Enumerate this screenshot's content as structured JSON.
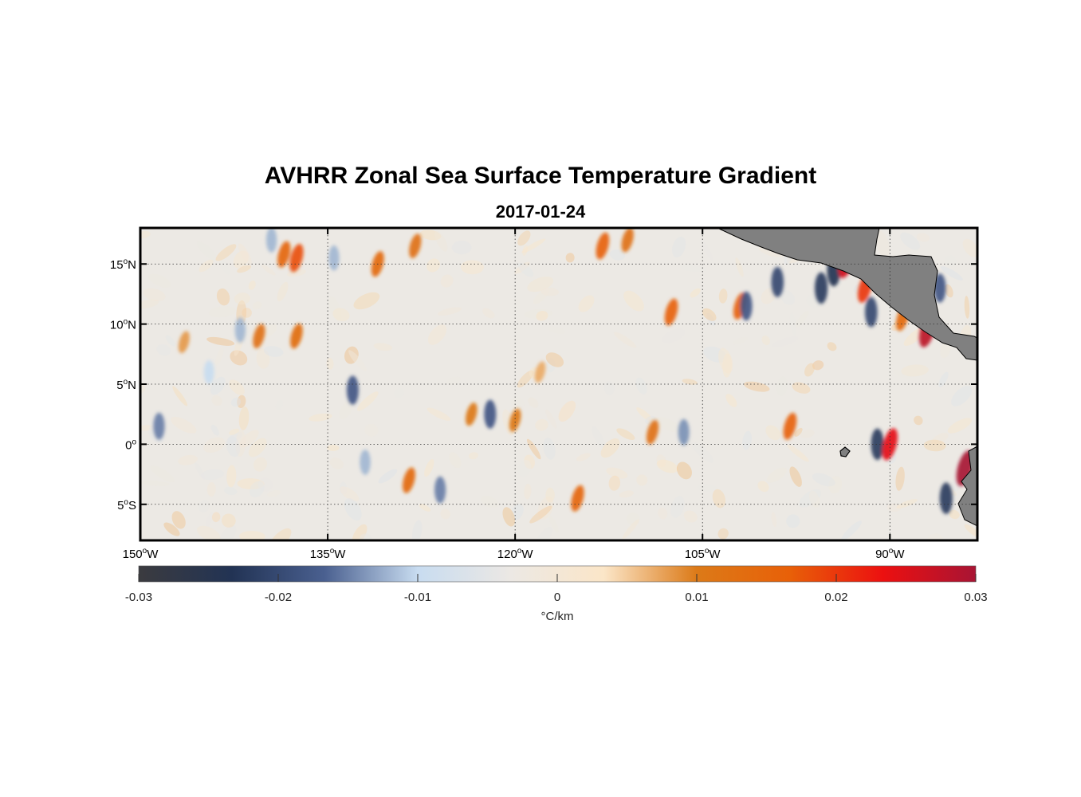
{
  "chart_data": {
    "type": "heatmap",
    "title": "AVHRR Zonal Sea Surface Temperature Gradient",
    "subtitle": "2017-01-24",
    "x_range": [
      -150,
      -83
    ],
    "y_range": [
      -8,
      18
    ],
    "x_ticks": [
      {
        "value": -150,
        "deg": "150",
        "dir": "W"
      },
      {
        "value": -135,
        "deg": "135",
        "dir": "W"
      },
      {
        "value": -120,
        "deg": "120",
        "dir": "W"
      },
      {
        "value": -105,
        "deg": "105",
        "dir": "W"
      },
      {
        "value": -90,
        "deg": "90",
        "dir": "W"
      }
    ],
    "y_ticks": [
      {
        "value": 15,
        "deg": "15",
        "dir": "N"
      },
      {
        "value": 10,
        "deg": "10",
        "dir": "N"
      },
      {
        "value": 5,
        "deg": "5",
        "dir": "N"
      },
      {
        "value": 0,
        "deg": "0",
        "dir": ""
      },
      {
        "value": -5,
        "deg": "5",
        "dir": "S"
      }
    ],
    "grid": true,
    "colorbar": {
      "label": "°C/km",
      "range": [
        -0.03,
        0.03
      ],
      "ticks": [
        {
          "value": -0.03,
          "label": "-0.03"
        },
        {
          "value": -0.02,
          "label": "-0.02"
        },
        {
          "value": -0.01,
          "label": "-0.01"
        },
        {
          "value": 0,
          "label": "0"
        },
        {
          "value": 0.01,
          "label": "0.01"
        },
        {
          "value": 0.02,
          "label": "0.02"
        },
        {
          "value": 0.03,
          "label": "0.03"
        }
      ],
      "colors": [
        "#3b3b3f",
        "#223354",
        "#4a6090",
        "#c8dcf0",
        "#ece8e4",
        "#fbe6c8",
        "#dc7a18",
        "#e86008",
        "#ec1010",
        "#a81434"
      ]
    },
    "land_color": "#808080",
    "features": [
      {
        "lon": -148.5,
        "lat": 1.5,
        "value": -0.015
      },
      {
        "lon": -146.5,
        "lat": 8.5,
        "value": 0.008
      },
      {
        "lon": -144.5,
        "lat": 6.0,
        "value": -0.01
      },
      {
        "lon": -142.0,
        "lat": 9.5,
        "value": -0.012
      },
      {
        "lon": -140.5,
        "lat": 9.0,
        "value": 0.012
      },
      {
        "lon": -139.5,
        "lat": 17.0,
        "value": -0.012
      },
      {
        "lon": -138.5,
        "lat": 15.8,
        "value": 0.015
      },
      {
        "lon": -137.5,
        "lat": 15.5,
        "value": 0.018
      },
      {
        "lon": -137.5,
        "lat": 9.0,
        "value": 0.013
      },
      {
        "lon": -134.5,
        "lat": 15.5,
        "value": -0.012
      },
      {
        "lon": -133.0,
        "lat": 4.5,
        "value": -0.018
      },
      {
        "lon": -131.0,
        "lat": 15.0,
        "value": 0.014
      },
      {
        "lon": -132.0,
        "lat": -1.5,
        "value": -0.012
      },
      {
        "lon": -128.0,
        "lat": 16.5,
        "value": 0.012
      },
      {
        "lon": -128.5,
        "lat": -3.0,
        "value": 0.014
      },
      {
        "lon": -126.0,
        "lat": -3.8,
        "value": -0.015
      },
      {
        "lon": -123.5,
        "lat": 2.5,
        "value": 0.01
      },
      {
        "lon": -122.0,
        "lat": 2.5,
        "value": -0.018
      },
      {
        "lon": -120.0,
        "lat": 2.0,
        "value": 0.01
      },
      {
        "lon": -118.0,
        "lat": 6.0,
        "value": 0.007
      },
      {
        "lon": -115.0,
        "lat": -4.5,
        "value": 0.015
      },
      {
        "lon": -113.0,
        "lat": 16.5,
        "value": 0.016
      },
      {
        "lon": -111.0,
        "lat": 17.0,
        "value": 0.012
      },
      {
        "lon": -109.0,
        "lat": 1.0,
        "value": 0.012
      },
      {
        "lon": -107.5,
        "lat": 11.0,
        "value": 0.016
      },
      {
        "lon": -106.5,
        "lat": 1.0,
        "value": -0.014
      },
      {
        "lon": -102.0,
        "lat": 11.5,
        "value": 0.016
      },
      {
        "lon": -101.5,
        "lat": 11.5,
        "value": -0.018
      },
      {
        "lon": -99.0,
        "lat": 13.5,
        "value": -0.02
      },
      {
        "lon": -98.0,
        "lat": 1.5,
        "value": 0.016
      },
      {
        "lon": -95.5,
        "lat": 13.0,
        "value": -0.022
      },
      {
        "lon": -94.5,
        "lat": 14.5,
        "value": -0.024
      },
      {
        "lon": -93.5,
        "lat": 15.2,
        "value": 0.026
      },
      {
        "lon": -92.0,
        "lat": 13.0,
        "value": 0.02
      },
      {
        "lon": -91.5,
        "lat": 11.0,
        "value": -0.02
      },
      {
        "lon": -91.0,
        "lat": 0.0,
        "value": -0.022
      },
      {
        "lon": -90.0,
        "lat": 0.0,
        "value": 0.024
      },
      {
        "lon": -89.0,
        "lat": 10.5,
        "value": 0.014
      },
      {
        "lon": -87.0,
        "lat": 9.5,
        "value": 0.028
      },
      {
        "lon": -86.0,
        "lat": 13.0,
        "value": -0.018
      },
      {
        "lon": -85.5,
        "lat": -4.5,
        "value": -0.022
      },
      {
        "lon": -84.0,
        "lat": -2.0,
        "value": 0.03
      }
    ]
  }
}
